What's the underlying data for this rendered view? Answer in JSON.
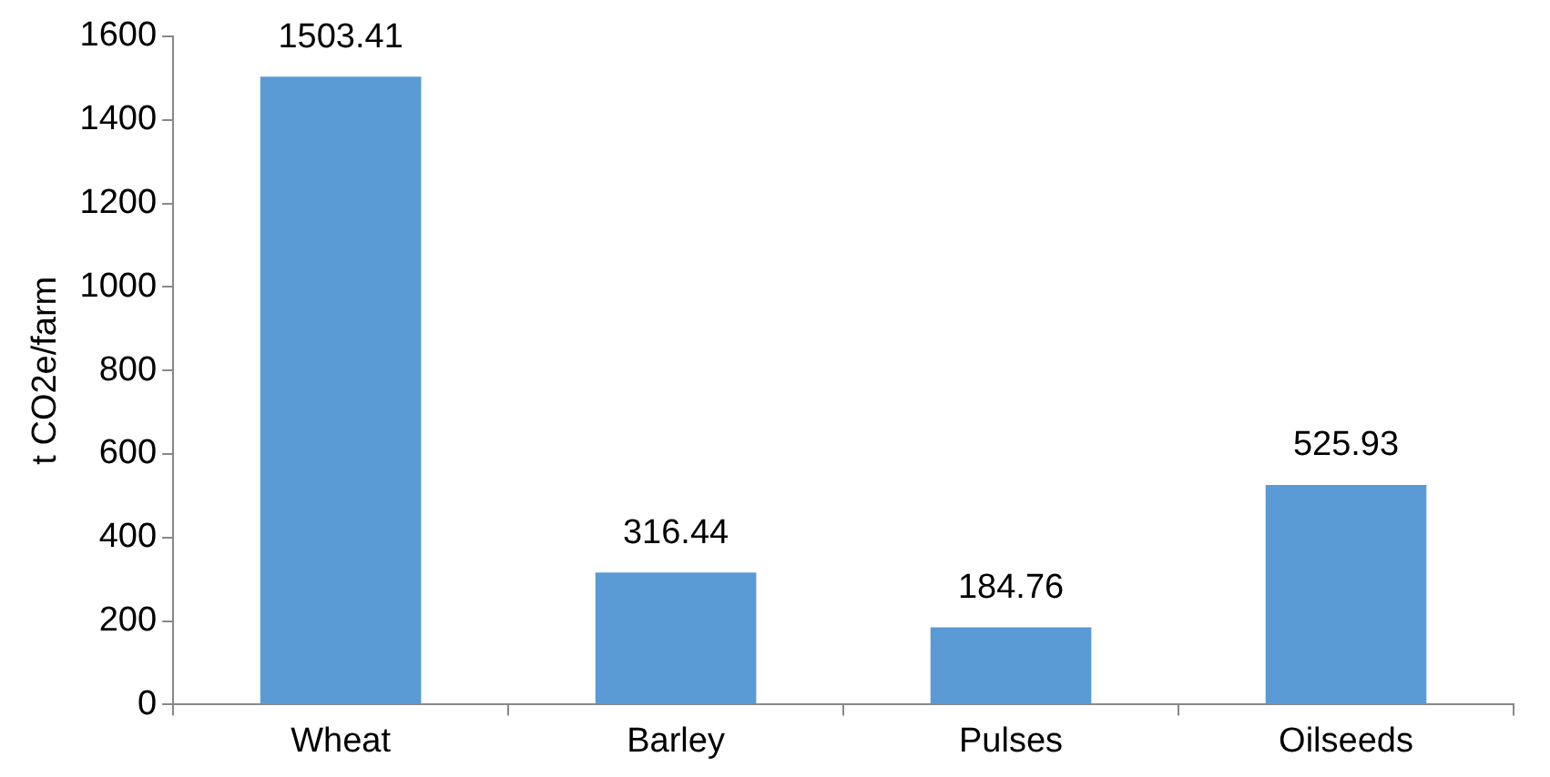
{
  "chart_data": {
    "type": "bar",
    "ylabel": "t CO2e/farm",
    "categories": [
      "Wheat",
      "Barley",
      "Pulses",
      "Oilseeds"
    ],
    "values": [
      1503.41,
      316.44,
      184.76,
      525.93
    ],
    "color": "#5b9bd5",
    "ylim": [
      0,
      1600
    ],
    "yticks": [
      0,
      200,
      400,
      600,
      800,
      1000,
      1200,
      1400,
      1600
    ],
    "grid": false,
    "legend": false,
    "data_labels": true
  }
}
